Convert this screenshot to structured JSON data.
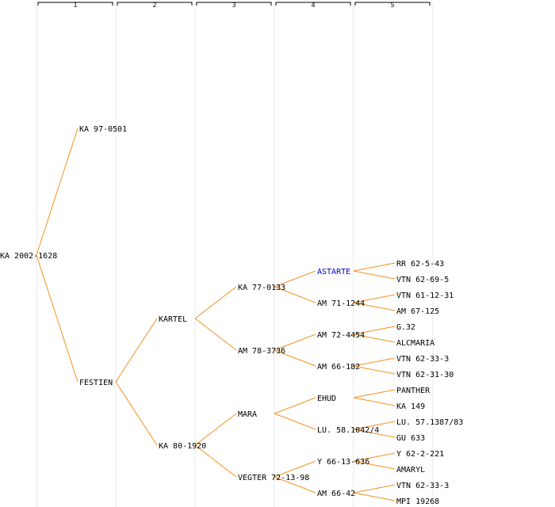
{
  "generations": [
    "1",
    "2",
    "3",
    "4",
    "5"
  ],
  "colors": {
    "edge": "#f5901e",
    "text": "#000000",
    "highlight": "#0000cc",
    "column_line": "#e8e8e8"
  },
  "tree": {
    "id": "root",
    "label": "KA 2002-1628",
    "children": [
      {
        "id": "sire",
        "label": "KA 97-0501"
      },
      {
        "id": "dam",
        "label": "FESTIEN",
        "children": [
          {
            "id": "dam-s",
            "label": "KARTEL",
            "children": [
              {
                "id": "dam-s-s",
                "label": "KA 77-0133",
                "children": [
                  {
                    "id": "dam-s-s-s",
                    "label": "ASTARTE",
                    "highlight": true,
                    "children": [
                      {
                        "id": "g5-1",
                        "label": "RR 62-5-43"
                      },
                      {
                        "id": "g5-2",
                        "label": "VTN 62-69-5"
                      }
                    ]
                  },
                  {
                    "id": "dam-s-s-d",
                    "label": "AM 71-1244",
                    "children": [
                      {
                        "id": "g5-3",
                        "label": "VTN 61-12-31"
                      },
                      {
                        "id": "g5-4",
                        "label": "AM 67-125"
                      }
                    ]
                  }
                ]
              },
              {
                "id": "dam-s-d",
                "label": "AM 78-3736",
                "children": [
                  {
                    "id": "dam-s-d-s",
                    "label": "AM 72-4454",
                    "children": [
                      {
                        "id": "g5-5",
                        "label": "G.32"
                      },
                      {
                        "id": "g5-6",
                        "label": "ALCMARIA"
                      }
                    ]
                  },
                  {
                    "id": "dam-s-d-d",
                    "label": "AM 66-182",
                    "children": [
                      {
                        "id": "g5-7",
                        "label": "VTN 62-33-3"
                      },
                      {
                        "id": "g5-8",
                        "label": "VTN 62-31-30"
                      }
                    ]
                  }
                ]
              }
            ]
          },
          {
            "id": "dam-d",
            "label": "KA 80-1920",
            "children": [
              {
                "id": "dam-d-s",
                "label": "MARA",
                "children": [
                  {
                    "id": "dam-d-s-s",
                    "label": "EHUD",
                    "children": [
                      {
                        "id": "g5-9",
                        "label": "PANTHER"
                      },
                      {
                        "id": "g5-10",
                        "label": "KA 149"
                      }
                    ]
                  },
                  {
                    "id": "dam-d-s-d",
                    "label": "LU. 58.1042/4",
                    "children": [
                      {
                        "id": "g5-11",
                        "label": "LU. 57.1387/83"
                      },
                      {
                        "id": "g5-12",
                        "label": "GU 633"
                      }
                    ]
                  }
                ]
              },
              {
                "id": "dam-d-d",
                "label": "VEGTER 72-13-98",
                "children": [
                  {
                    "id": "dam-d-d-s",
                    "label": "Y 66-13-636",
                    "children": [
                      {
                        "id": "g5-13",
                        "label": "Y 62-2-221"
                      },
                      {
                        "id": "g5-14",
                        "label": "AMARYL"
                      }
                    ]
                  },
                  {
                    "id": "dam-d-d-d",
                    "label": "AM 66-42",
                    "children": [
                      {
                        "id": "g5-15",
                        "label": "VTN 62-33-3"
                      },
                      {
                        "id": "g5-16",
                        "label": "MPI 19268"
                      }
                    ]
                  }
                ]
              }
            ]
          }
        ]
      }
    ]
  }
}
